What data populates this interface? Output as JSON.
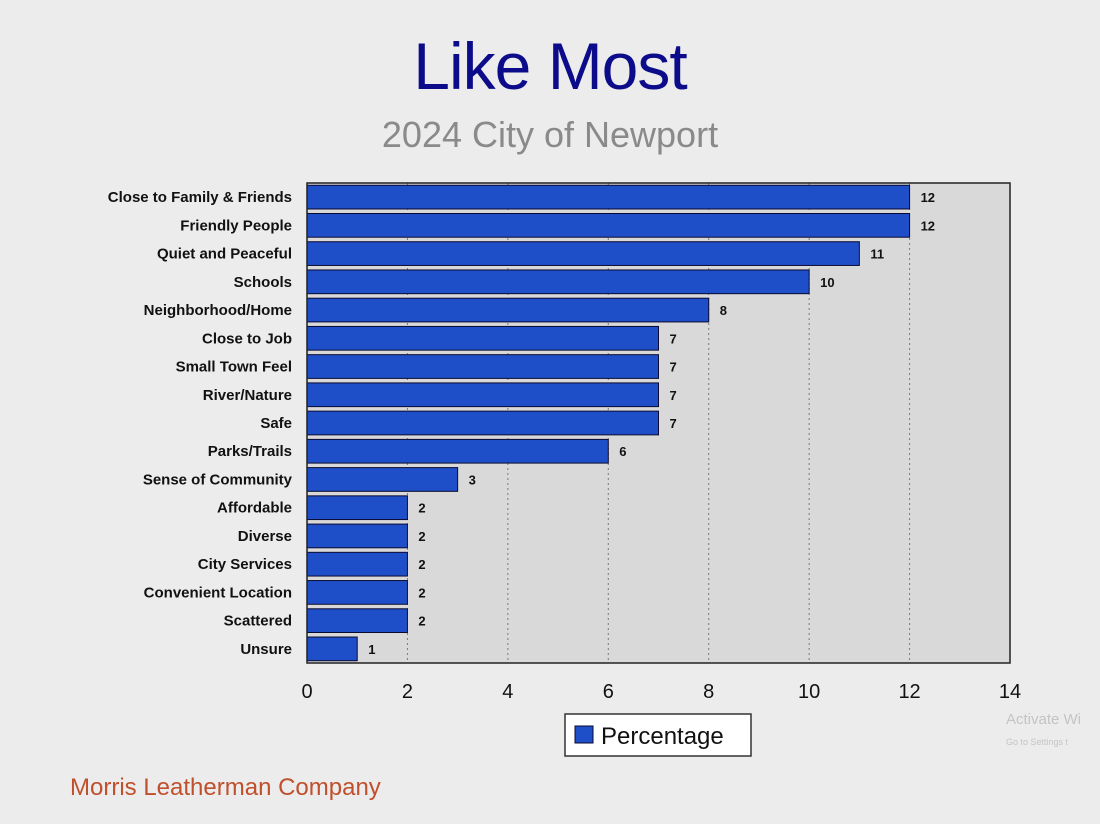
{
  "title": "Like Most",
  "subtitle": "2024 City of Newport",
  "footer": "Morris Leatherman Company",
  "watermark": {
    "line1": "Activate Wi",
    "line2": "Go to Settings t"
  },
  "colors": {
    "bar": "#1f4fc8",
    "plot_bg": "#d9d9d9",
    "title": "#0c0c8a",
    "subtitle": "#8a8a8a",
    "footer": "#c0502c"
  },
  "chart_data": {
    "type": "bar",
    "orientation": "horizontal",
    "categories": [
      "Close to Family & Friends",
      "Friendly People",
      "Quiet and Peaceful",
      "Schools",
      "Neighborhood/Home",
      "Close to Job",
      "Small Town Feel",
      "River/Nature",
      "Safe",
      "Parks/Trails",
      "Sense of Community",
      "Affordable",
      "Diverse",
      "City Services",
      "Convenient Location",
      "Scattered",
      "Unsure"
    ],
    "series": [
      {
        "name": "Percentage",
        "values": [
          12,
          12,
          11,
          10,
          8,
          7,
          7,
          7,
          7,
          6,
          3,
          2,
          2,
          2,
          2,
          2,
          1
        ]
      }
    ],
    "xlim": [
      0,
      14
    ],
    "xticks": [
      0,
      2,
      4,
      6,
      8,
      10,
      12,
      14
    ],
    "grid": "vertical dotted",
    "legend": "bottom-center"
  }
}
